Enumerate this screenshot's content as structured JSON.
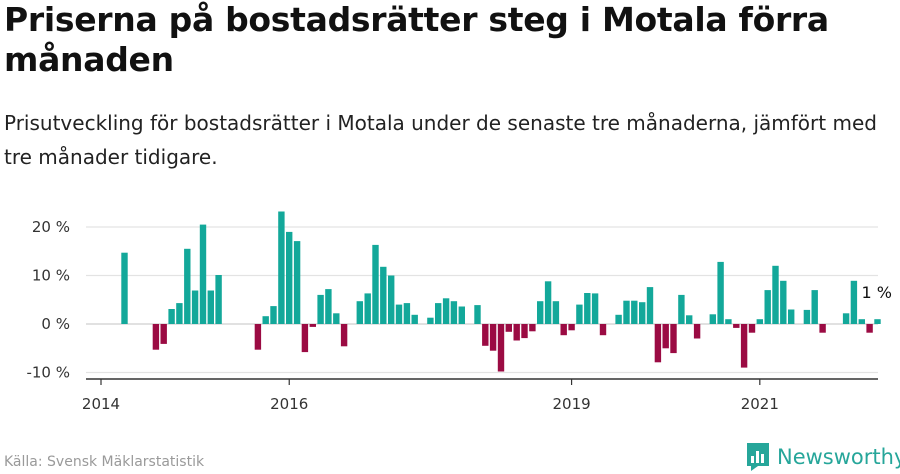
{
  "title": "Priserna på bostadsrätter steg i Motala förra månaden",
  "subtitle": "Prisutveckling för bostadsrätter i Motala under de senaste tre månaderna, jämfört med tre månader tidigare.",
  "source": "Källa: Svensk Mäklarstatistik",
  "brand": "Newsworthy",
  "colors": {
    "positive": "#13a89a",
    "negative": "#9b0b43",
    "brand": "#26a69a"
  },
  "chart_data": {
    "type": "bar",
    "unit": "%",
    "ylim": [
      -11,
      22
    ],
    "y_ticks": [
      {
        "value": 20,
        "label": "20 %"
      },
      {
        "value": 10,
        "label": "10 %"
      },
      {
        "value": 0,
        "label": "0 %"
      },
      {
        "value": -10,
        "label": "-10 %"
      }
    ],
    "x_ticks": [
      {
        "label": "2014",
        "index": 0
      },
      {
        "label": "2016",
        "index": 24
      },
      {
        "label": "2019",
        "index": 60
      },
      {
        "label": "2021",
        "index": 84
      }
    ],
    "end_label": "1 %",
    "values": [
      null,
      null,
      null,
      14.7,
      null,
      null,
      null,
      -5.3,
      -4.1,
      3.1,
      4.3,
      15.5,
      6.9,
      20.5,
      6.9,
      10.1,
      null,
      null,
      null,
      null,
      -5.3,
      1.6,
      3.7,
      23.2,
      19.0,
      17.1,
      -5.8,
      -0.6,
      6.0,
      7.2,
      2.2,
      -4.6,
      null,
      4.7,
      6.3,
      16.3,
      11.8,
      10.0,
      4.0,
      4.3,
      1.9,
      null,
      1.3,
      4.3,
      5.3,
      4.7,
      3.6,
      null,
      3.9,
      -4.5,
      -5.5,
      -9.8,
      -1.6,
      -3.4,
      -2.9,
      -1.5,
      4.7,
      8.8,
      4.7,
      -2.3,
      -1.3,
      4.0,
      6.4,
      6.3,
      -2.3,
      null,
      1.9,
      4.8,
      4.8,
      4.5,
      7.6,
      -7.9,
      -5.0,
      -6.0,
      6.0,
      1.8,
      -3.0,
      null,
      2.0,
      12.8,
      1.0,
      -0.8,
      -9.0,
      -1.8,
      1.0,
      7.0,
      12.0,
      8.9,
      3.0,
      null,
      2.9,
      7.0,
      -1.8,
      null,
      null,
      2.2,
      8.9,
      1.0,
      -1.8,
      1.0
    ]
  }
}
